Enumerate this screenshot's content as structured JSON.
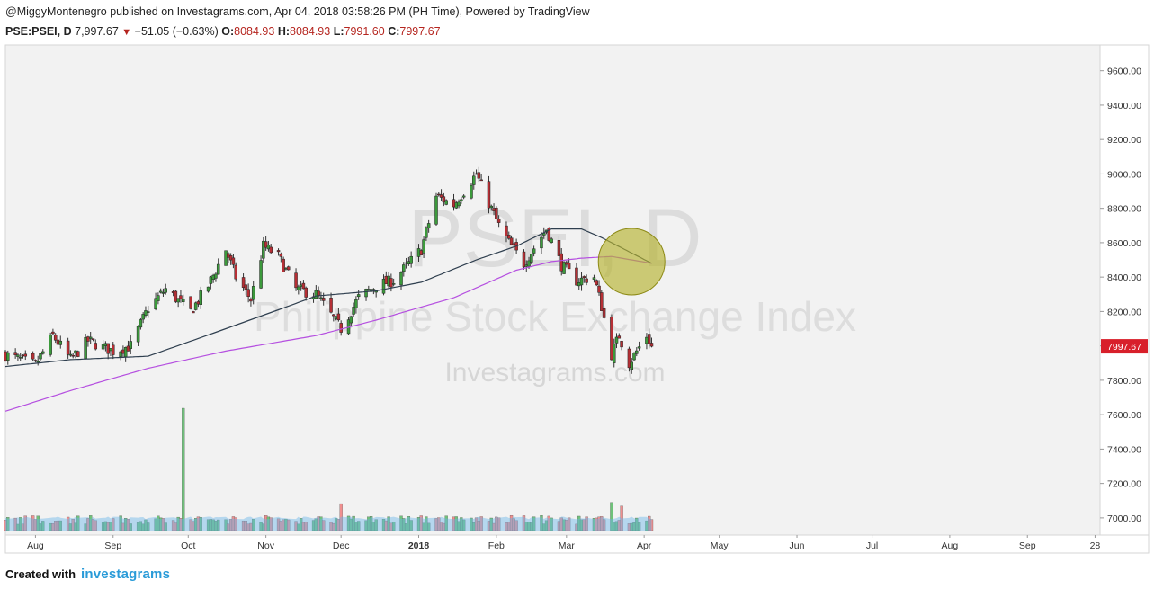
{
  "header": {
    "published": "@MiggyMontenegro published on Investagrams.com, Apr 04, 2018 03:58:26 PM (PH Time), Powered by TradingView"
  },
  "ohlc": {
    "symbol": "PSE:PSEI, D",
    "last": "7,997.67",
    "down_icon": "down-triangle-icon",
    "change": "−51.05 (−0.63%)",
    "o_label": "O:",
    "o_val": "8084.93",
    "h_label": "H:",
    "h_val": "8084.93",
    "l_label": "L:",
    "l_val": "7991.60",
    "c_label": "C:",
    "c_val": "7997.67"
  },
  "watermark": {
    "big": "PSEI, D",
    "name": "Philippine Stock Exchange Index",
    "site": "Investagrams.com"
  },
  "footer": {
    "created": "Created with",
    "brand": "investagrams"
  },
  "colors": {
    "up": "#3c9a3c",
    "down": "#b62f35",
    "ma_fast": "#2f3f4f",
    "ma_slow": "#b54fe0",
    "price_label_bg": "#d81f2a",
    "highlight": "#b5b230"
  },
  "chart_data": {
    "type": "candlestick",
    "y_axis": {
      "ticks": [
        "9600.00",
        "9400.00",
        "9200.00",
        "9000.00",
        "8800.00",
        "8600.00",
        "8400.00",
        "8200.00",
        "8000.00",
        "7800.00",
        "7600.00",
        "7400.00",
        "7200.00",
        "7000.00"
      ],
      "tick_values": [
        9600,
        9400,
        9200,
        9000,
        8800,
        8600,
        8400,
        8200,
        8000,
        7800,
        7600,
        7400,
        7200,
        7000
      ],
      "range": [
        6900,
        9750
      ]
    },
    "x_axis": {
      "range": [
        "2017-07-20",
        "2018-09-30"
      ],
      "ticks": [
        {
          "label": "Aug",
          "date": "2017-08-01",
          "bold": false
        },
        {
          "label": "Sep",
          "date": "2017-09-01",
          "bold": false
        },
        {
          "label": "Oct",
          "date": "2017-10-01",
          "bold": false
        },
        {
          "label": "Nov",
          "date": "2017-11-01",
          "bold": false
        },
        {
          "label": "Dec",
          "date": "2017-12-01",
          "bold": false
        },
        {
          "label": "2018",
          "date": "2018-01-01",
          "bold": true
        },
        {
          "label": "Feb",
          "date": "2018-02-01",
          "bold": false
        },
        {
          "label": "Mar",
          "date": "2018-03-01",
          "bold": false
        },
        {
          "label": "Apr",
          "date": "2018-04-01",
          "bold": false
        },
        {
          "label": "May",
          "date": "2018-05-01",
          "bold": false
        },
        {
          "label": "Jun",
          "date": "2018-06-01",
          "bold": false
        },
        {
          "label": "Jul",
          "date": "2018-07-01",
          "bold": false
        },
        {
          "label": "Aug",
          "date": "2018-08-01",
          "bold": false
        },
        {
          "label": "Sep",
          "date": "2018-09-01",
          "bold": false
        },
        {
          "label": "28",
          "date": "2018-09-28",
          "bold": false
        }
      ]
    },
    "last_price_label": "7997.67",
    "last_price": 7997.67,
    "anchors": [
      {
        "date": "2017-07-20",
        "close": 7950
      },
      {
        "date": "2017-08-01",
        "close": 7890
      },
      {
        "date": "2017-08-08",
        "close": 8060
      },
      {
        "date": "2017-08-15",
        "close": 7920
      },
      {
        "date": "2017-08-22",
        "close": 8030
      },
      {
        "date": "2017-09-01",
        "close": 7970
      },
      {
        "date": "2017-09-08",
        "close": 8000
      },
      {
        "date": "2017-09-15",
        "close": 8220
      },
      {
        "date": "2017-09-22",
        "close": 8330
      },
      {
        "date": "2017-10-02",
        "close": 8200
      },
      {
        "date": "2017-10-09",
        "close": 8350
      },
      {
        "date": "2017-10-16",
        "close": 8560
      },
      {
        "date": "2017-10-20",
        "close": 8400
      },
      {
        "date": "2017-10-26",
        "close": 8270
      },
      {
        "date": "2017-10-31",
        "close": 8580
      },
      {
        "date": "2017-11-06",
        "close": 8520
      },
      {
        "date": "2017-11-13",
        "close": 8330
      },
      {
        "date": "2017-11-21",
        "close": 8300
      },
      {
        "date": "2017-12-01",
        "close": 8100
      },
      {
        "date": "2017-12-08",
        "close": 8280
      },
      {
        "date": "2017-12-15",
        "close": 8350
      },
      {
        "date": "2017-12-22",
        "close": 8380
      },
      {
        "date": "2018-01-02",
        "close": 8560
      },
      {
        "date": "2018-01-08",
        "close": 8870
      },
      {
        "date": "2018-01-15",
        "close": 8820
      },
      {
        "date": "2018-01-24",
        "close": 9000
      },
      {
        "date": "2018-01-29",
        "close": 8830
      },
      {
        "date": "2018-02-02",
        "close": 8700
      },
      {
        "date": "2018-02-06",
        "close": 8600
      },
      {
        "date": "2018-02-12",
        "close": 8480
      },
      {
        "date": "2018-02-21",
        "close": 8680
      },
      {
        "date": "2018-02-27",
        "close": 8470
      },
      {
        "date": "2018-03-05",
        "close": 8380
      },
      {
        "date": "2018-03-12",
        "close": 8400
      },
      {
        "date": "2018-03-15",
        "close": 8230
      },
      {
        "date": "2018-03-19",
        "close": 7950
      },
      {
        "date": "2018-03-22",
        "close": 8060
      },
      {
        "date": "2018-03-26",
        "close": 7900
      },
      {
        "date": "2018-04-02",
        "close": 8060
      },
      {
        "date": "2018-04-04",
        "close": 7998
      }
    ],
    "ma_fast": {
      "anchors": [
        {
          "date": "2017-07-20",
          "value": 7880
        },
        {
          "date": "2017-08-15",
          "value": 7920
        },
        {
          "date": "2017-09-15",
          "value": 7940
        },
        {
          "date": "2017-10-16",
          "value": 8100
        },
        {
          "date": "2017-11-06",
          "value": 8210
        },
        {
          "date": "2017-11-21",
          "value": 8290
        },
        {
          "date": "2017-12-15",
          "value": 8320
        },
        {
          "date": "2018-01-02",
          "value": 8370
        },
        {
          "date": "2018-01-24",
          "value": 8500
        },
        {
          "date": "2018-02-09",
          "value": 8580
        },
        {
          "date": "2018-02-23",
          "value": 8680
        },
        {
          "date": "2018-03-07",
          "value": 8680
        },
        {
          "date": "2018-03-15",
          "value": 8630
        },
        {
          "date": "2018-04-04",
          "value": 8480
        }
      ]
    },
    "ma_slow": {
      "anchors": [
        {
          "date": "2017-07-20",
          "value": 7620
        },
        {
          "date": "2017-08-15",
          "value": 7740
        },
        {
          "date": "2017-09-15",
          "value": 7870
        },
        {
          "date": "2017-10-16",
          "value": 7970
        },
        {
          "date": "2017-11-21",
          "value": 8060
        },
        {
          "date": "2017-12-15",
          "value": 8150
        },
        {
          "date": "2018-01-15",
          "value": 8280
        },
        {
          "date": "2018-02-09",
          "value": 8440
        },
        {
          "date": "2018-02-23",
          "value": 8490
        },
        {
          "date": "2018-03-07",
          "value": 8510
        },
        {
          "date": "2018-03-19",
          "value": 8520
        },
        {
          "date": "2018-04-04",
          "value": 8480
        }
      ]
    },
    "annotation_circle": {
      "date": "2018-03-27",
      "value": 8490
    },
    "volume_spikes": [
      {
        "date": "2017-09-29",
        "size": 1.0,
        "up": true
      },
      {
        "date": "2017-12-01",
        "size": 0.22,
        "up": false
      },
      {
        "date": "2018-03-19",
        "size": 0.23,
        "up": true
      },
      {
        "date": "2018-03-23",
        "size": 0.2,
        "up": false
      },
      {
        "date": "2017-08-18",
        "size": 0.12,
        "up": true
      },
      {
        "date": "2017-09-21",
        "size": 0.1,
        "up": false
      },
      {
        "date": "2018-01-08",
        "size": 0.1,
        "up": false
      }
    ]
  }
}
